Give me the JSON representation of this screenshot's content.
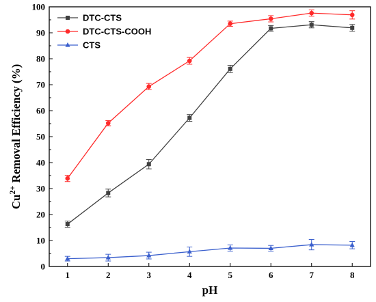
{
  "chart_data": {
    "type": "line",
    "xlabel": "pH",
    "ylabel_base": "Cu",
    "ylabel_sup": "2+",
    "ylabel_rest": " Removal Efficiency (%)",
    "xlim": [
      0.55,
      8.45
    ],
    "ylim": [
      0,
      100
    ],
    "x": [
      1,
      2,
      3,
      4,
      5,
      6,
      7,
      8
    ],
    "xticks": [
      "1",
      "2",
      "3",
      "4",
      "5",
      "6",
      "7",
      "8"
    ],
    "yticks": [
      "0",
      "10",
      "20",
      "30",
      "40",
      "50",
      "60",
      "70",
      "80",
      "90",
      "100"
    ],
    "grid": false,
    "legend_position": "top-left",
    "series": [
      {
        "name": "DTC-CTS",
        "color": "#404040",
        "marker": "square",
        "values": [
          16.3,
          28.3,
          39.4,
          57.2,
          76.1,
          91.7,
          93.1,
          91.9
        ],
        "errors": [
          1.2,
          1.5,
          1.8,
          1.3,
          1.4,
          1.1,
          1.2,
          1.3
        ]
      },
      {
        "name": "DTC-CTS-COOH",
        "color": "#ff2a2a",
        "marker": "circle",
        "values": [
          33.9,
          55.2,
          69.3,
          79.2,
          93.5,
          95.4,
          97.6,
          96.9
        ],
        "errors": [
          1.2,
          1.0,
          1.2,
          1.3,
          1.0,
          1.2,
          1.2,
          1.6
        ]
      },
      {
        "name": "CTS",
        "color": "#3a5fcd",
        "marker": "triangle",
        "values": [
          3.0,
          3.4,
          4.2,
          5.7,
          7.1,
          7.0,
          8.4,
          8.2
        ],
        "errors": [
          0.9,
          1.3,
          1.3,
          1.8,
          1.2,
          1.1,
          2.0,
          1.4
        ]
      }
    ]
  }
}
